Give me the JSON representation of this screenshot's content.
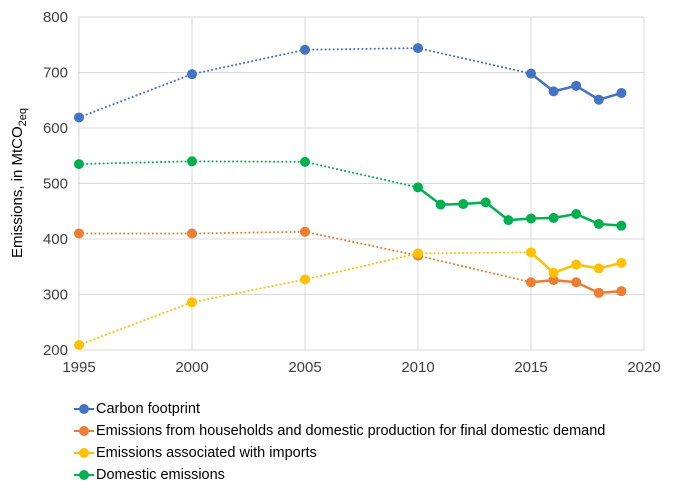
{
  "chart_data": {
    "type": "line",
    "title": "",
    "xlabel": "",
    "ylabel_main": "Emissions, in MtCO",
    "ylabel_sub": "2eq",
    "xlim": [
      1995,
      2020
    ],
    "ylim": [
      200,
      800
    ],
    "x_ticks": [
      1995,
      2000,
      2005,
      2010,
      2015,
      2020
    ],
    "y_ticks": [
      200,
      300,
      400,
      500,
      600,
      700,
      800
    ],
    "grid": true,
    "legend_position": "bottom-left",
    "series": [
      {
        "name": "Carbon footprint",
        "color": "#4472C4",
        "x": [
          1995,
          2000,
          2005,
          2010,
          2015,
          2016,
          2017,
          2018,
          2019
        ],
        "values": [
          619,
          697,
          741,
          744,
          698,
          666,
          676,
          651,
          663
        ],
        "dotted_until": 2015
      },
      {
        "name": "Emissions from households and domestic production for final domestic demand",
        "color": "#ED7D31",
        "x": [
          1995,
          2000,
          2005,
          2010,
          2015,
          2016,
          2017,
          2018,
          2019
        ],
        "values": [
          410,
          410,
          413,
          370,
          322,
          326,
          322,
          303,
          306
        ],
        "dotted_until": 2015
      },
      {
        "name": "Emissions associated with imports",
        "color": "#FFC000",
        "x": [
          1995,
          2000,
          2005,
          2010,
          2015,
          2016,
          2017,
          2018,
          2019
        ],
        "values": [
          209,
          286,
          327,
          374,
          376,
          339,
          354,
          347,
          357
        ],
        "dotted_until": 2015
      },
      {
        "name": "Domestic emissions",
        "color": "#00B050",
        "x": [
          1995,
          2000,
          2005,
          2010,
          2011,
          2012,
          2013,
          2014,
          2015,
          2016,
          2017,
          2018,
          2019
        ],
        "values": [
          535,
          540,
          539,
          493,
          462,
          463,
          466,
          434,
          437,
          438,
          445,
          427,
          424
        ],
        "dotted_until": 2010
      }
    ]
  }
}
